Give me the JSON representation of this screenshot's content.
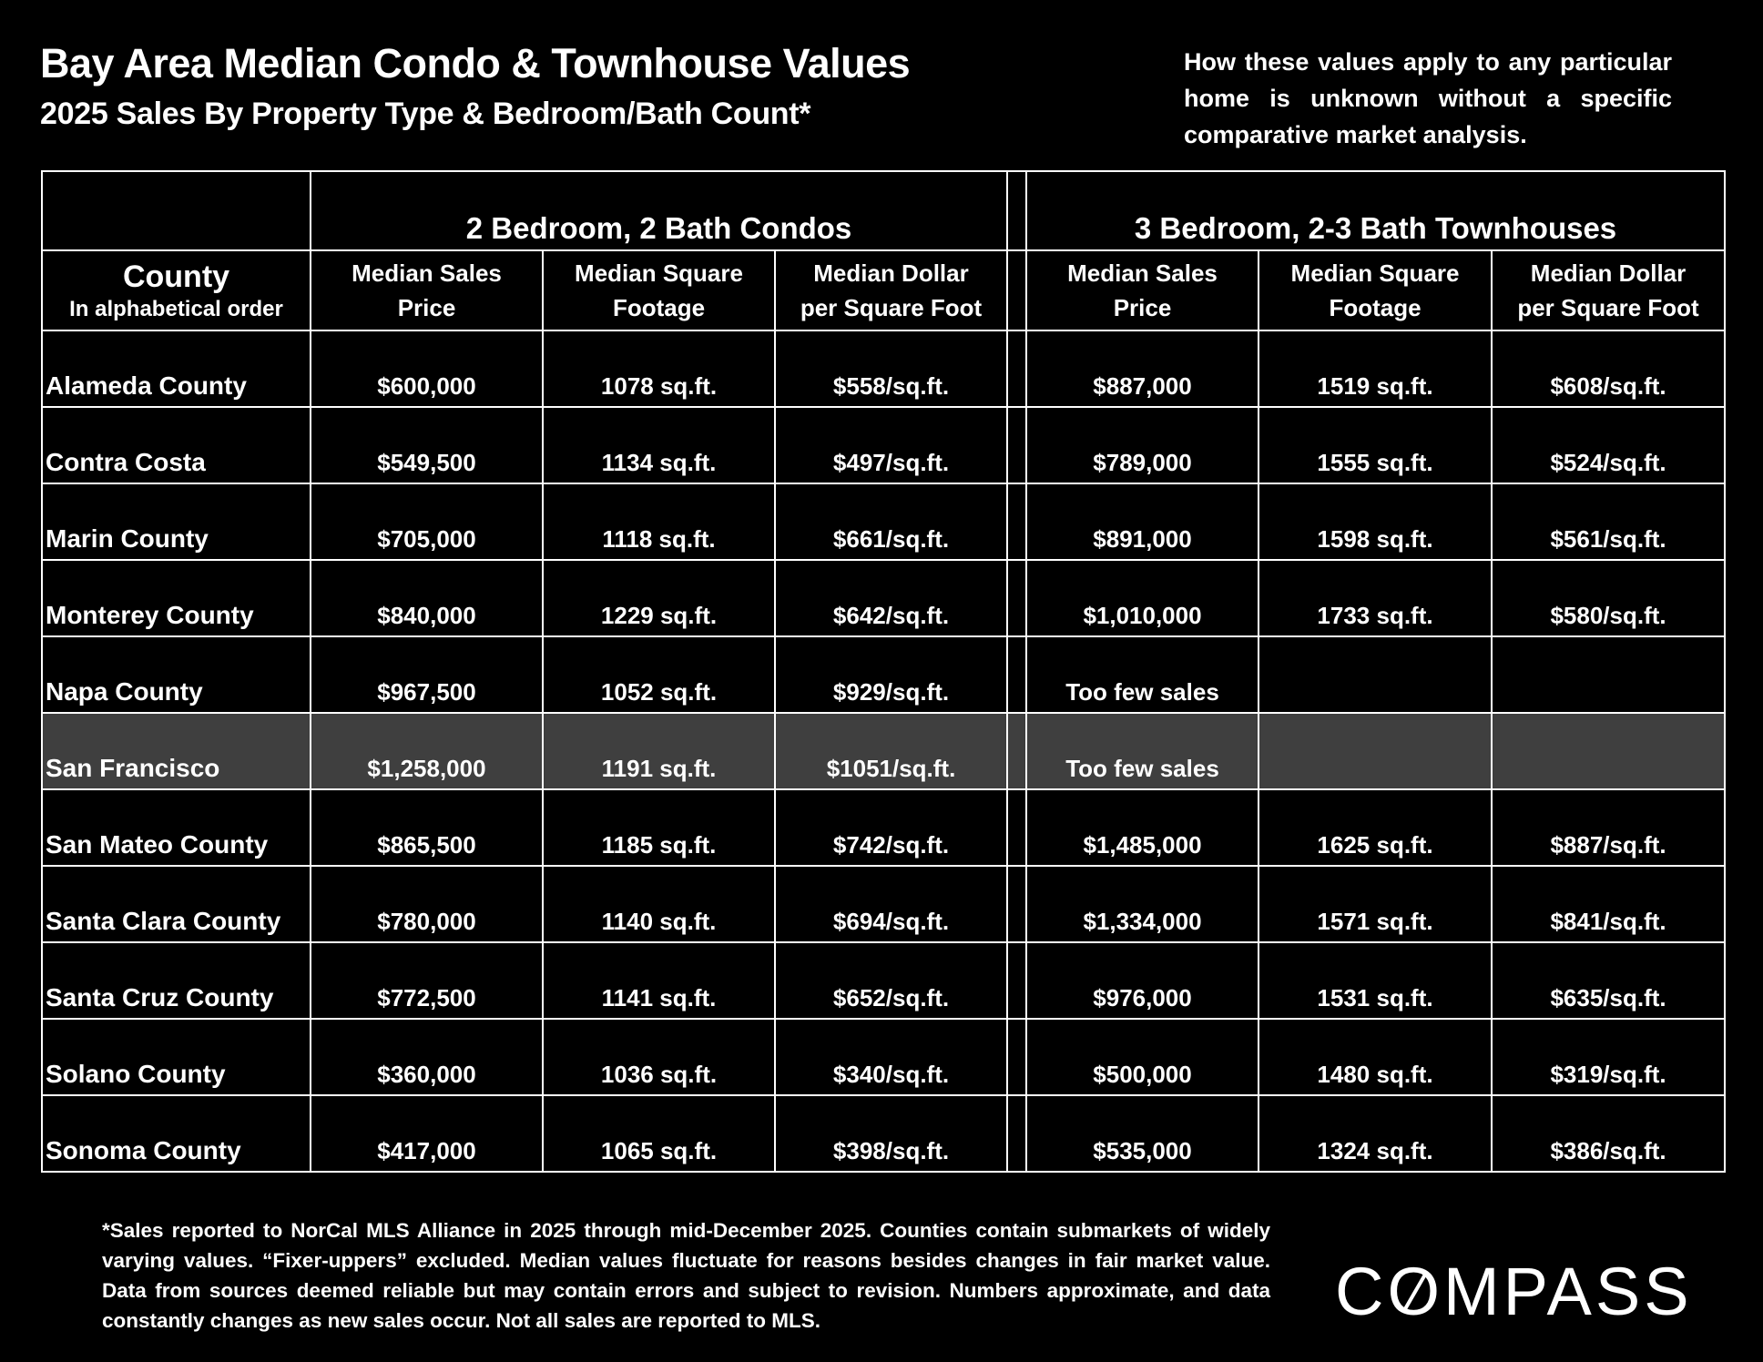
{
  "header": {
    "title": "Bay Area Median Condo & Townhouse Values",
    "subtitle": "2025 Sales By Property Type & Bedroom/Bath Count*",
    "note": "How these values apply to any particular home is unknown without a specific comparative market analysis."
  },
  "table": {
    "group_headers": [
      "2 Bedroom, 2 Bath Condos",
      "3 Bedroom, 2-3 Bath Townhouses"
    ],
    "county_header": "County",
    "county_subheader": "In alphabetical order",
    "column_headers": [
      {
        "line1": "Median Sales",
        "line2": "Price"
      },
      {
        "line1": "Median Square",
        "line2": "Footage"
      },
      {
        "line1": "Median Dollar",
        "line2": "per Square Foot"
      },
      {
        "line1": "Median Sales",
        "line2": "Price"
      },
      {
        "line1": "Median Square",
        "line2": "Footage"
      },
      {
        "line1": "Median Dollar",
        "line2": "per Square Foot"
      }
    ],
    "highlight_color": "#3f3f3f",
    "rows": [
      {
        "county": "Alameda County",
        "cells": [
          "$600,000",
          "1078 sq.ft.",
          "$558/sq.ft.",
          "$887,000",
          "1519 sq.ft.",
          "$608/sq.ft."
        ]
      },
      {
        "county": "Contra Costa",
        "cells": [
          "$549,500",
          "1134 sq.ft.",
          "$497/sq.ft.",
          "$789,000",
          "1555 sq.ft.",
          "$524/sq.ft."
        ]
      },
      {
        "county": "Marin County",
        "cells": [
          "$705,000",
          "1118 sq.ft.",
          "$661/sq.ft.",
          "$891,000",
          "1598 sq.ft.",
          "$561/sq.ft."
        ]
      },
      {
        "county": "Monterey County",
        "cells": [
          "$840,000",
          "1229 sq.ft.",
          "$642/sq.ft.",
          "$1,010,000",
          "1733 sq.ft.",
          "$580/sq.ft."
        ]
      },
      {
        "county": "Napa County",
        "cells": [
          "$967,500",
          "1052 sq.ft.",
          "$929/sq.ft.",
          "Too few sales",
          "",
          ""
        ]
      },
      {
        "county": "San Francisco",
        "highlight": true,
        "cells": [
          "$1,258,000",
          "1191 sq.ft.",
          "$1051/sq.ft.",
          "Too few sales",
          "",
          ""
        ]
      },
      {
        "county": "San Mateo County",
        "cells": [
          "$865,500",
          "1185 sq.ft.",
          "$742/sq.ft.",
          "$1,485,000",
          "1625 sq.ft.",
          "$887/sq.ft."
        ]
      },
      {
        "county": "Santa Clara County",
        "cells": [
          "$780,000",
          "1140 sq.ft.",
          "$694/sq.ft.",
          "$1,334,000",
          "1571 sq.ft.",
          "$841/sq.ft."
        ]
      },
      {
        "county": "Santa Cruz County",
        "cells": [
          "$772,500",
          "1141 sq.ft.",
          "$652/sq.ft.",
          "$976,000",
          "1531 sq.ft.",
          "$635/sq.ft."
        ]
      },
      {
        "county": "Solano County",
        "cells": [
          "$360,000",
          "1036 sq.ft.",
          "$340/sq.ft.",
          "$500,000",
          "1480 sq.ft.",
          "$319/sq.ft."
        ]
      },
      {
        "county": "Sonoma County",
        "cells": [
          "$417,000",
          "1065 sq.ft.",
          "$398/sq.ft.",
          "$535,000",
          "1324 sq.ft.",
          "$386/sq.ft."
        ]
      }
    ]
  },
  "footnote": "*Sales reported to NorCal MLS Alliance in 2025 through mid-December 2025. Counties contain submarkets of widely varying values. “Fixer-uppers” excluded. Median values fluctuate for reasons besides changes in fair market value. Data from sources deemed reliable but may contain errors and subject to revision.  Numbers approximate, and data constantly changes as new sales occur. Not all sales are reported to MLS.",
  "logo": "COMPASS"
}
